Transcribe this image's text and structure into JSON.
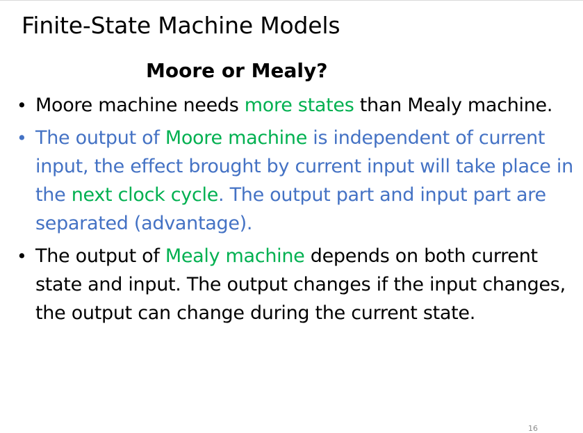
{
  "slide": {
    "title": "Finite-State Machine Models",
    "subtitle": "Moore or Mealy?",
    "page_number": "16"
  },
  "colors": {
    "text": "#000000",
    "blue_text": "#4472c4",
    "highlight": "#00b050",
    "page_number": "#8c8c8c"
  },
  "bullets": [
    {
      "marker": "•",
      "color": "black",
      "segments": [
        {
          "text": "Moore machine needs ",
          "highlight": false
        },
        {
          "text": "more states",
          "highlight": true
        },
        {
          "text": " than Mealy machine.",
          "highlight": false
        }
      ]
    },
    {
      "marker": "•",
      "color": "blue",
      "segments": [
        {
          "text": "The output of ",
          "highlight": false
        },
        {
          "text": "Moore machine",
          "highlight": true
        },
        {
          "text": " is independent of current input, the effect brought by current input will take place in the ",
          "highlight": false
        },
        {
          "text": "next clock cycle",
          "highlight": true
        },
        {
          "text": ". The output part and input part are separated (advantage).",
          "highlight": false
        }
      ]
    },
    {
      "marker": "•",
      "color": "black",
      "segments": [
        {
          "text": "The output of ",
          "highlight": false
        },
        {
          "text": "Mealy machine",
          "highlight": true
        },
        {
          "text": " depends on both current state and input. The output changes if the input changes, the output can change during the current state.",
          "highlight": false
        }
      ]
    }
  ]
}
